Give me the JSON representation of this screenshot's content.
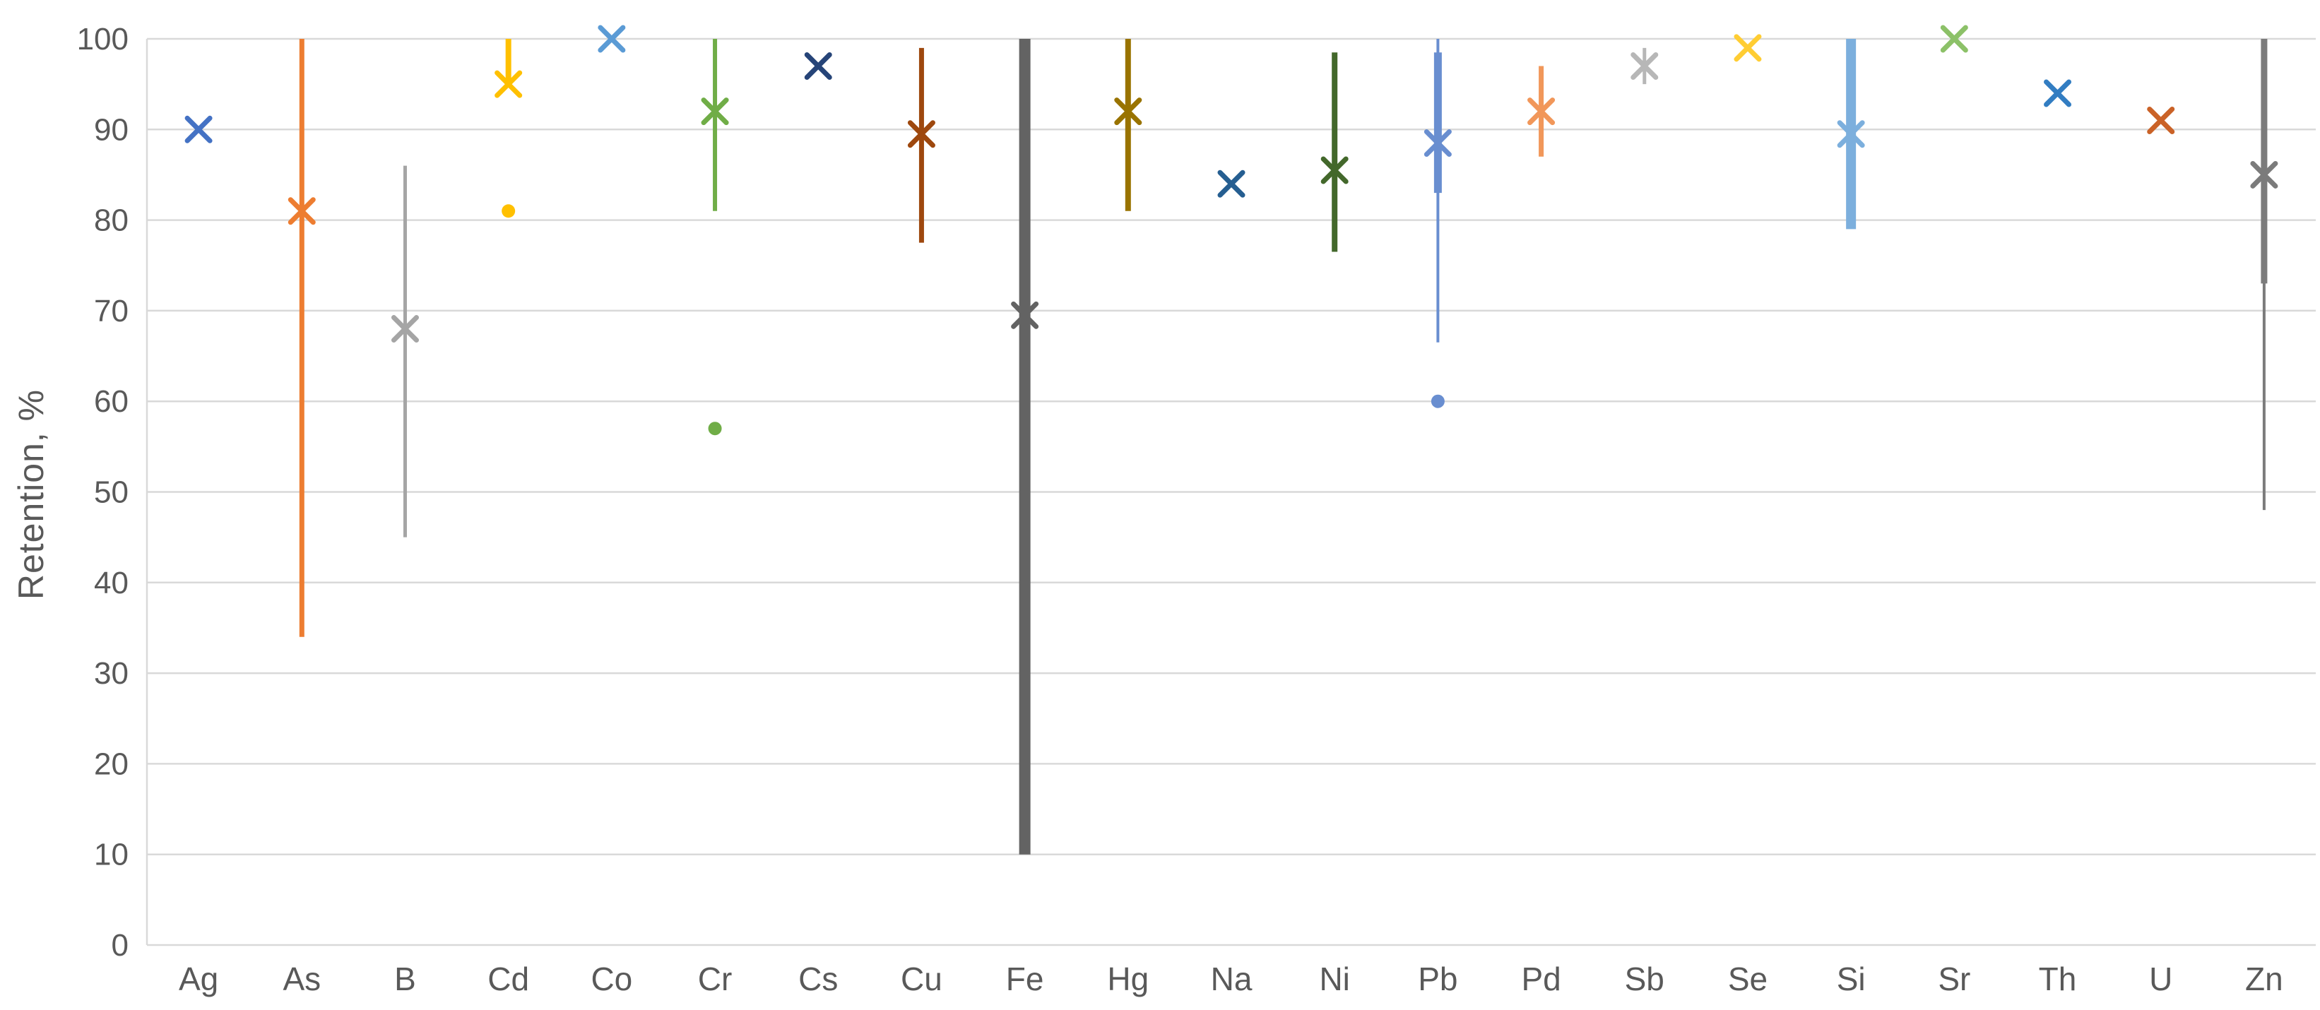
{
  "chart_data": {
    "type": "scatter",
    "title": "",
    "ylabel": "Retention, %",
    "xlabel": "",
    "ylim": [
      0,
      100
    ],
    "y_ticks": [
      0,
      10,
      20,
      30,
      40,
      50,
      60,
      70,
      80,
      90,
      100
    ],
    "grid": "horizontal",
    "legend": "none",
    "marker_style": "x-mean with vertical min-max range lines and round outlier dots",
    "text_color": "#595959",
    "gridline_color": "#D9D9D9",
    "categories": [
      "Ag",
      "As",
      "B",
      "Cd",
      "Co",
      "Cr",
      "Cs",
      "Cu",
      "Fe",
      "Hg",
      "Na",
      "Ni",
      "Pb",
      "Pd",
      "Sb",
      "Se",
      "Si",
      "Sr",
      "Th",
      "U",
      "Zn"
    ],
    "elements": [
      {
        "symbol": "Ag",
        "color": "#4472C4",
        "mean": 90
      },
      {
        "symbol": "As",
        "color": "#ED7D31",
        "mean": 81,
        "range": [
          34,
          100
        ],
        "range_width": 7
      },
      {
        "symbol": "B",
        "color": "#A5A5A5",
        "mean": 68,
        "range": [
          45,
          86
        ],
        "range_width": 5
      },
      {
        "symbol": "Cd",
        "color": "#FFC000",
        "mean": 95,
        "range": [
          95,
          100
        ],
        "range_width": 8,
        "dots": [
          81
        ]
      },
      {
        "symbol": "Co",
        "color": "#5B9BD5",
        "mean": 100
      },
      {
        "symbol": "Cr",
        "color": "#70AD47",
        "mean": 92,
        "range": [
          81,
          100
        ],
        "range_width": 6,
        "dots": [
          57
        ]
      },
      {
        "symbol": "Cs",
        "color": "#264478",
        "mean": 97
      },
      {
        "symbol": "Cu",
        "color": "#9E480E",
        "mean": 89.5,
        "range": [
          77.5,
          99
        ],
        "range_width": 7
      },
      {
        "symbol": "Fe",
        "color": "#636363",
        "mean": 69.5,
        "range": [
          10,
          100
        ],
        "range_width": 16
      },
      {
        "symbol": "Hg",
        "color": "#997300",
        "mean": 92,
        "range": [
          81,
          100
        ],
        "range_width": 8
      },
      {
        "symbol": "Na",
        "color": "#255E91",
        "mean": 84
      },
      {
        "symbol": "Ni",
        "color": "#43682B",
        "mean": 85.5,
        "range": [
          76.5,
          98.5
        ],
        "range_width": 8
      },
      {
        "symbol": "Pb",
        "color": "#698ED0",
        "mean": 88.5,
        "range": [
          66.5,
          100
        ],
        "range_width": 4,
        "thick_range": [
          83,
          98.5
        ],
        "thick_width": 11,
        "dots": [
          60
        ]
      },
      {
        "symbol": "Pd",
        "color": "#F1975A",
        "mean": 92,
        "range": [
          87,
          97
        ],
        "range_width": 7
      },
      {
        "symbol": "Sb",
        "color": "#B7B7B7",
        "mean": 97,
        "range": [
          95,
          99
        ],
        "range_width": 5
      },
      {
        "symbol": "Se",
        "color": "#FFCD33",
        "mean": 99
      },
      {
        "symbol": "Si",
        "color": "#7CAFDD",
        "mean": 89.5,
        "range": [
          79,
          100
        ],
        "range_width": 14
      },
      {
        "symbol": "Sr",
        "color": "#8CC168",
        "mean": 100
      },
      {
        "symbol": "Th",
        "color": "#327DC2",
        "mean": 94
      },
      {
        "symbol": "U",
        "color": "#CA6227",
        "mean": 91
      },
      {
        "symbol": "Zn",
        "color": "#7B7B7B",
        "mean": 85,
        "range": [
          48,
          100
        ],
        "range_width": 4,
        "thick_range": [
          73,
          100
        ],
        "thick_width": 9
      }
    ]
  }
}
